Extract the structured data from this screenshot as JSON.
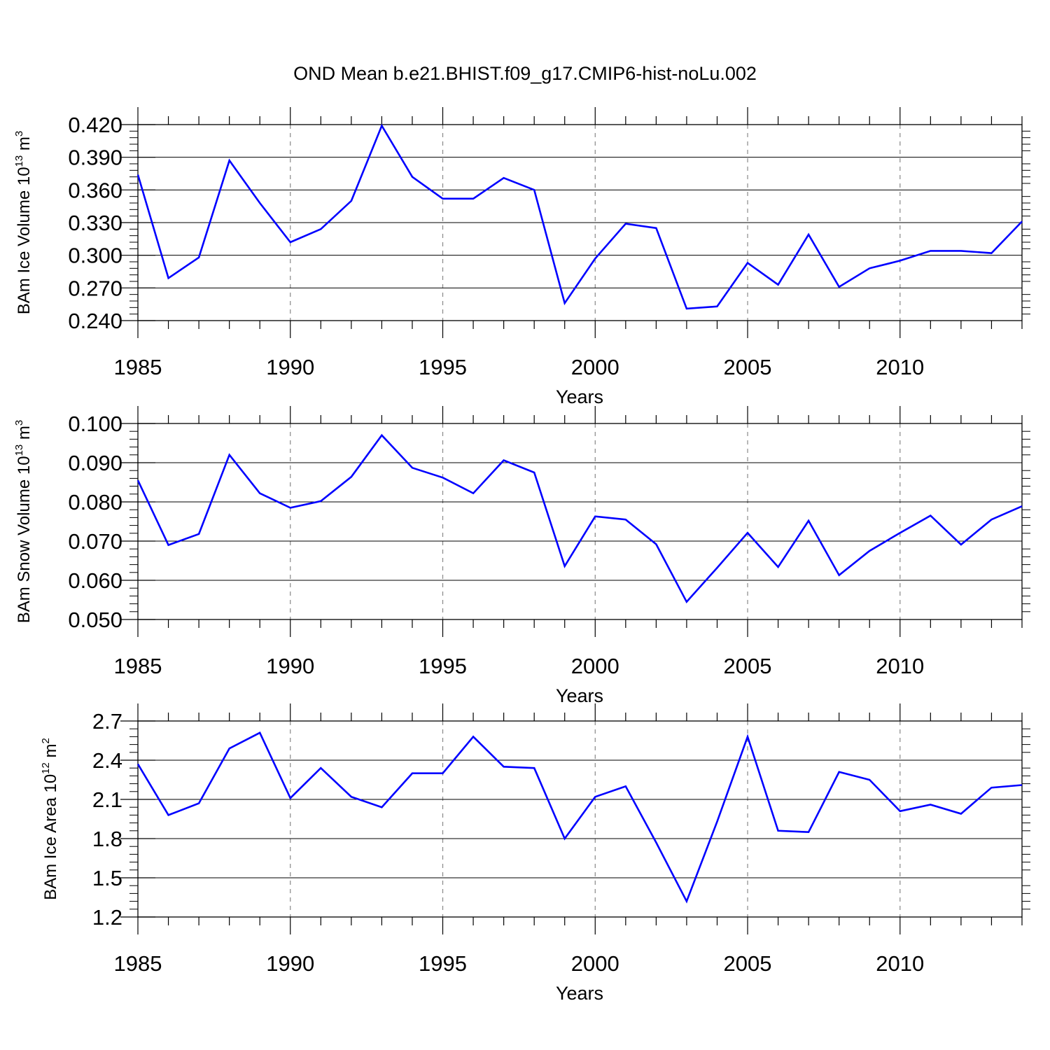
{
  "title": "OND Mean b.e21.BHIST.f09_g17.CMIP6-hist-noLu.002",
  "line_color": "#0000ff",
  "chart_data": [
    {
      "type": "line",
      "ylabel": {
        "base": "BAm Ice Volume 10",
        "exp": "13",
        "unit": " m",
        "unit_exp": "3"
      },
      "xlabel": "Years",
      "xlim": [
        1985,
        2014
      ],
      "ylim": [
        0.24,
        0.42
      ],
      "yticks": [
        0.24,
        0.27,
        0.3,
        0.33,
        0.36,
        0.39,
        0.42
      ],
      "yticklabels": [
        "0.240",
        "0.270",
        "0.300",
        "0.330",
        "0.360",
        "0.390",
        "0.420"
      ],
      "xticks": [
        1985,
        1990,
        1995,
        2000,
        2005,
        2010
      ],
      "xticklabels": [
        "1985",
        "1990",
        "1995",
        "2000",
        "2005",
        "2010"
      ],
      "x": [
        1985,
        1986,
        1987,
        1988,
        1989,
        1990,
        1991,
        1992,
        1993,
        1994,
        1995,
        1996,
        1997,
        1998,
        1999,
        2000,
        2001,
        2002,
        2003,
        2004,
        2005,
        2006,
        2007,
        2008,
        2009,
        2010,
        2011,
        2012,
        2013,
        2014
      ],
      "y": [
        0.374,
        0.279,
        0.298,
        0.387,
        0.348,
        0.312,
        0.324,
        0.35,
        0.419,
        0.372,
        0.352,
        0.352,
        0.371,
        0.36,
        0.256,
        0.297,
        0.329,
        0.325,
        0.251,
        0.253,
        0.293,
        0.273,
        0.319,
        0.271,
        0.288,
        0.295,
        0.304,
        0.304,
        0.302,
        0.331
      ]
    },
    {
      "type": "line",
      "ylabel": {
        "base": "BAm Snow Volume 10",
        "exp": "13",
        "unit": " m",
        "unit_exp": "3"
      },
      "xlabel": "Years",
      "xlim": [
        1985,
        2014
      ],
      "ylim": [
        0.05,
        0.1
      ],
      "yticks": [
        0.05,
        0.06,
        0.07,
        0.08,
        0.09,
        0.1
      ],
      "yticklabels": [
        "0.050",
        "0.060",
        "0.070",
        "0.080",
        "0.090",
        "0.100"
      ],
      "xticks": [
        1985,
        1990,
        1995,
        2000,
        2005,
        2010
      ],
      "xticklabels": [
        "1985",
        "1990",
        "1995",
        "2000",
        "2005",
        "2010"
      ],
      "x": [
        1985,
        1986,
        1987,
        1988,
        1989,
        1990,
        1991,
        1992,
        1993,
        1994,
        1995,
        1996,
        1997,
        1998,
        1999,
        2000,
        2001,
        2002,
        2003,
        2004,
        2005,
        2006,
        2007,
        2008,
        2009,
        2010,
        2011,
        2012,
        2013,
        2014
      ],
      "y": [
        0.0855,
        0.069,
        0.0718,
        0.092,
        0.0822,
        0.0785,
        0.0802,
        0.0864,
        0.097,
        0.0887,
        0.0862,
        0.0822,
        0.0906,
        0.0875,
        0.0636,
        0.0763,
        0.0755,
        0.0692,
        0.0545,
        0.0632,
        0.0721,
        0.0634,
        0.0752,
        0.0613,
        0.0675,
        0.0721,
        0.0765,
        0.0691,
        0.0755,
        0.0789
      ]
    },
    {
      "type": "line",
      "ylabel": {
        "base": "BAm Ice Area 10",
        "exp": "12",
        "unit": " m",
        "unit_exp": "2"
      },
      "xlabel": "Years",
      "xlim": [
        1985,
        2014
      ],
      "ylim": [
        1.2,
        2.7
      ],
      "yticks": [
        1.2,
        1.5,
        1.8,
        2.1,
        2.4,
        2.7
      ],
      "yticklabels": [
        "1.2",
        "1.5",
        "1.8",
        "2.1",
        "2.4",
        "2.7"
      ],
      "xticks": [
        1985,
        1990,
        1995,
        2000,
        2005,
        2010
      ],
      "xticklabels": [
        "1985",
        "1990",
        "1995",
        "2000",
        "2005",
        "2010"
      ],
      "x": [
        1985,
        1986,
        1987,
        1988,
        1989,
        1990,
        1991,
        1992,
        1993,
        1994,
        1995,
        1996,
        1997,
        1998,
        1999,
        2000,
        2001,
        2002,
        2003,
        2004,
        2005,
        2006,
        2007,
        2008,
        2009,
        2010,
        2011,
        2012,
        2013,
        2014
      ],
      "y": [
        2.37,
        1.98,
        2.07,
        2.49,
        2.61,
        2.11,
        2.34,
        2.12,
        2.04,
        2.3,
        2.3,
        2.58,
        2.35,
        2.34,
        1.8,
        2.12,
        2.2,
        1.77,
        1.32,
        1.93,
        2.58,
        1.86,
        1.85,
        2.31,
        2.25,
        2.01,
        2.06,
        1.99,
        2.19,
        2.21
      ]
    }
  ]
}
